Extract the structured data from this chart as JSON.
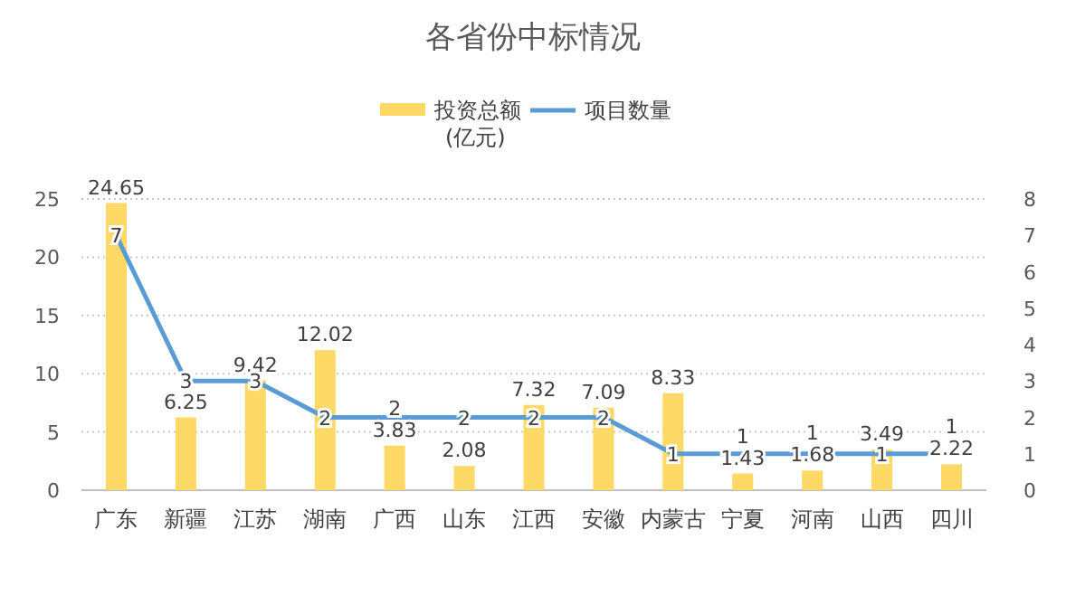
{
  "chart_data": {
    "type": "bar",
    "title": "各省份中标情况",
    "categories": [
      "广东",
      "新疆",
      "江苏",
      "湖南",
      "广西",
      "山东",
      "江西",
      "安徽",
      "内蒙古",
      "宁夏",
      "河南",
      "山西",
      "四川"
    ],
    "series": [
      {
        "name": "投资总额\n(亿元)",
        "color": "#ffd966",
        "values": [
          24.65,
          6.25,
          9.42,
          12.02,
          3.83,
          2.08,
          7.32,
          7.09,
          8.33,
          1.43,
          1.68,
          3.49,
          2.22
        ]
      },
      {
        "name": "项目数量",
        "type": "line",
        "axis": "y2",
        "color": "#5b9bd5",
        "values": [
          7,
          3,
          3,
          2,
          2,
          2,
          2,
          2,
          1,
          1,
          1,
          1,
          1
        ]
      }
    ],
    "ylim": [
      0,
      25
    ],
    "yticks": [
      0,
      5,
      10,
      15,
      20,
      25
    ],
    "y2lim": [
      0,
      8
    ],
    "y2ticks": [
      0,
      1,
      2,
      3,
      4,
      5,
      6,
      7,
      8
    ],
    "grid": "y",
    "legend": "top",
    "data_labels": true,
    "line_style": "solid"
  }
}
